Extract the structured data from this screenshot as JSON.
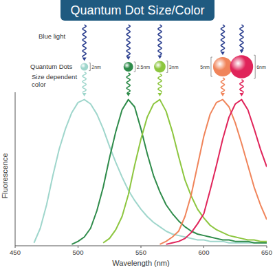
{
  "chart_data": {
    "type": "line",
    "title": "Quantum Dot Size/Color",
    "annotations": [
      "Blue light",
      "Quantum Dots",
      "Size dependent color"
    ],
    "x_label": "Wavelength (nm)",
    "y_label": "Fluorescence",
    "x": [
      450,
      455,
      460,
      465,
      470,
      475,
      480,
      485,
      490,
      495,
      500,
      505,
      510,
      515,
      520,
      525,
      530,
      535,
      540,
      545,
      550,
      555,
      560,
      565,
      570,
      575,
      580,
      585,
      590,
      595,
      600,
      605,
      610,
      615,
      620,
      625,
      630,
      635,
      640,
      645,
      650
    ],
    "xlim": [
      450,
      650
    ],
    "xticks": [
      450,
      500,
      550,
      600,
      650
    ],
    "ylim": [
      0,
      105
    ],
    "tick_labels": "x",
    "grid": false,
    "series": [
      {
        "name": "2nm",
        "size": 2,
        "color": "#9fd6cc",
        "values": [
          null,
          null,
          null,
          2,
          12,
          28,
          48,
          66,
          80,
          91,
          98,
          100,
          97,
          90,
          80,
          68,
          57,
          47,
          38,
          31,
          25,
          20,
          16,
          13,
          10,
          8,
          7,
          6,
          5,
          4,
          4,
          3,
          3,
          3,
          2,
          2,
          2,
          2,
          2,
          2,
          2
        ]
      },
      {
        "name": "2.5nm",
        "size": 2.5,
        "color": "#2e8b4a",
        "values": [
          null,
          null,
          null,
          null,
          null,
          null,
          null,
          null,
          null,
          1,
          3,
          6,
          12,
          24,
          40,
          60,
          78,
          93,
          100,
          95,
          80,
          63,
          48,
          37,
          28,
          22,
          17,
          13,
          10,
          8,
          7,
          6,
          5,
          4,
          4,
          3,
          3,
          3,
          2,
          2,
          2
        ]
      },
      {
        "name": "3nm",
        "size": 3,
        "color": "#8dc63f",
        "values": [
          null,
          null,
          null,
          null,
          null,
          null,
          null,
          null,
          null,
          null,
          null,
          null,
          null,
          null,
          2,
          5,
          11,
          20,
          35,
          55,
          73,
          88,
          97,
          100,
          92,
          78,
          61,
          45,
          34,
          25,
          19,
          14,
          11,
          9,
          7,
          6,
          5,
          4,
          4,
          3,
          3
        ]
      },
      {
        "name": "5nm",
        "size": 5,
        "color": "#f0845a",
        "values": [
          null,
          null,
          null,
          null,
          null,
          null,
          null,
          null,
          null,
          null,
          null,
          null,
          null,
          null,
          null,
          null,
          null,
          null,
          null,
          null,
          null,
          null,
          null,
          1,
          3,
          6,
          10,
          20,
          35,
          55,
          75,
          90,
          98,
          100,
          95,
          84,
          70,
          55,
          40,
          28,
          18
        ]
      },
      {
        "name": "6nm",
        "size": 6,
        "color": "#e0245a",
        "values": [
          null,
          null,
          null,
          null,
          null,
          null,
          null,
          null,
          null,
          null,
          null,
          null,
          null,
          null,
          null,
          null,
          null,
          null,
          null,
          null,
          null,
          null,
          null,
          null,
          1,
          2,
          3,
          5,
          9,
          15,
          22,
          38,
          55,
          73,
          88,
          97,
          100,
          93,
          80,
          66,
          54
        ]
      }
    ]
  }
}
